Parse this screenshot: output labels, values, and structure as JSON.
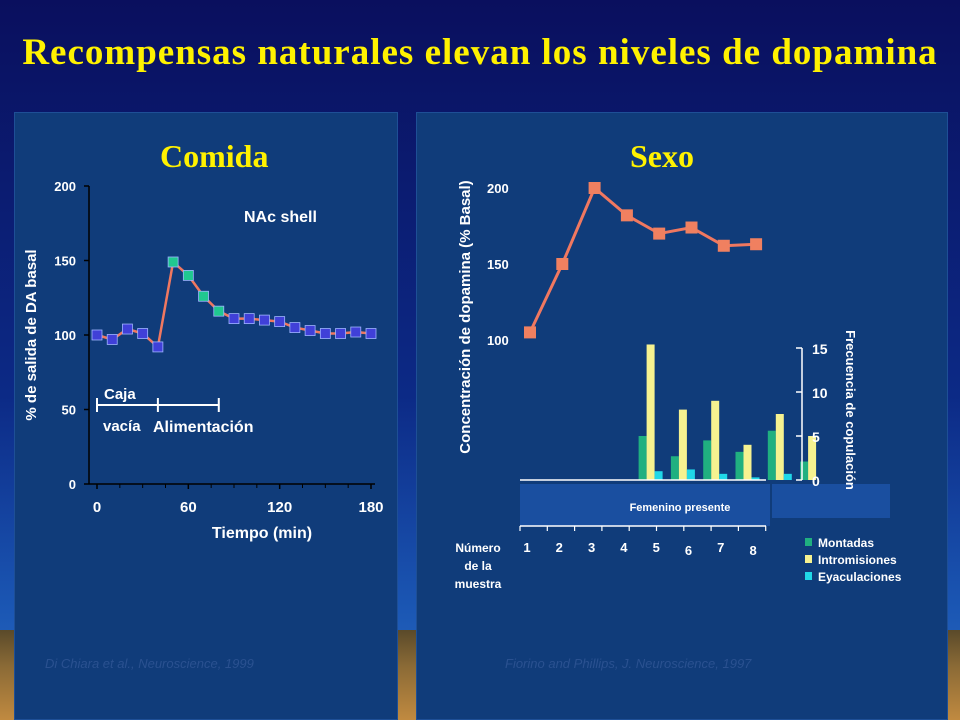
{
  "slide": {
    "title": "Recompensas naturales elevan los niveles de dopamina",
    "left_subtitle": "Comida",
    "right_subtitle": "Sexo",
    "left_citation": "Di Chiara et al., Neuroscience, 1999",
    "right_citation": "Fiorino and Phillips, J. Neuroscience, 1997"
  },
  "colors": {
    "title": "#fff200",
    "line": "#f07860",
    "marker_square_food": "#4040d8",
    "marker_feeding": "#20c890",
    "marker_sex": "#f08060",
    "bar_montadas": "#20b080",
    "bar_intromisiones": "#f6f290",
    "bar_eyaculaciones": "#20d8e8"
  },
  "chart_data": [
    {
      "type": "line",
      "title": "Comida",
      "annotation": "NAc shell",
      "xlabel": "Tiempo (min)",
      "ylabel": "% de salida de DA basal",
      "xlim": [
        0,
        180
      ],
      "ylim": [
        0,
        200
      ],
      "xticks": [
        "0",
        "60",
        "120",
        "180"
      ],
      "yticks": [
        "0",
        "50",
        "100",
        "150",
        "200"
      ],
      "x": [
        0,
        10,
        20,
        30,
        40,
        50,
        60,
        70,
        80,
        90,
        100,
        110,
        120,
        130,
        140,
        150,
        160,
        170,
        180
      ],
      "y": [
        100,
        97,
        104,
        101,
        92,
        149,
        140,
        126,
        116,
        111,
        111,
        110,
        109,
        105,
        103,
        101,
        101,
        102,
        101
      ],
      "phase_markers": {
        "feeding_indices": [
          5,
          6,
          7,
          8
        ]
      },
      "intervals": [
        {
          "label_lines": [
            "Caja",
            "vacía"
          ],
          "start": 0,
          "end": 40
        },
        {
          "label": "Alimentación",
          "start": 40,
          "end": 80
        }
      ]
    },
    {
      "type": "line",
      "title": "Sexo",
      "ylabel": "Concentración de dopamina (% Basal)",
      "ylim": [
        100,
        200
      ],
      "yticks": [
        "100",
        "150",
        "200"
      ],
      "x": [
        1,
        2,
        3,
        4,
        5,
        6,
        7,
        8
      ],
      "y": [
        105,
        150,
        200,
        182,
        170,
        174,
        162,
        163
      ]
    },
    {
      "type": "bar",
      "ylabel": "Frecuencia de copulación",
      "ylim": [
        0,
        15
      ],
      "yticks": [
        "0",
        "5",
        "10",
        "15"
      ],
      "x_header": [
        "Número",
        "de la",
        "muestra"
      ],
      "categories": [
        "1",
        "2",
        "3",
        "4",
        "5",
        "6",
        "7",
        "8"
      ],
      "period_label": "Femenino presente",
      "series": [
        {
          "name": "Montadas",
          "values": [
            null,
            null,
            5,
            2.7,
            4.5,
            3.2,
            5.6,
            2.1
          ]
        },
        {
          "name": "Intromisiones",
          "values": [
            null,
            null,
            15.4,
            8,
            9,
            4,
            7.5,
            5
          ]
        },
        {
          "name": "Eyaculaciones",
          "values": [
            null,
            null,
            1,
            1.2,
            0.7,
            0.3,
            0.7,
            0
          ]
        }
      ]
    }
  ]
}
